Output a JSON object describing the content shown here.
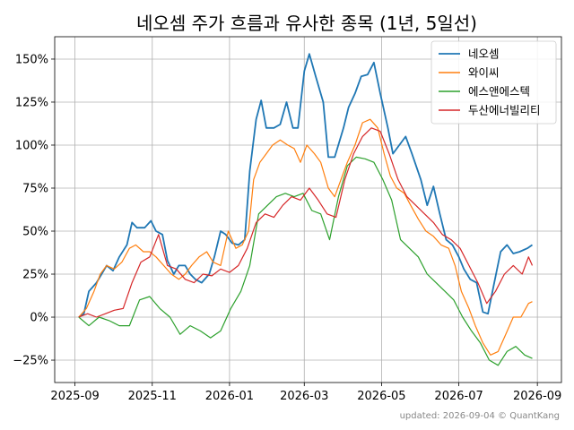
{
  "chart_data": {
    "type": "line",
    "title": "네오셈 주가 흐름과 유사한 종목 (1년, 5일선)",
    "footnote": "updated: 2026-09-04 © QuantKang",
    "x_ticks": [
      "2025-09",
      "2025-11",
      "2026-01",
      "2026-03",
      "2026-05",
      "2026-07",
      "2026-09"
    ],
    "x_tick_dates": [
      "2025-09-01",
      "2025-11-01",
      "2026-01-01",
      "2026-03-01",
      "2026-05-01",
      "2026-07-01",
      "2026-09-01"
    ],
    "y_ticks": [
      -25,
      0,
      25,
      50,
      75,
      100,
      125,
      150
    ],
    "y_tick_labels": [
      "−25%",
      "0%",
      "25%",
      "50%",
      "75%",
      "100%",
      "125%",
      "150%"
    ],
    "x_range": [
      "2025-08-16",
      "2026-09-20"
    ],
    "y_range": [
      -38,
      163
    ],
    "grid": true,
    "legend_position": "top-right",
    "series": [
      {
        "name": "네오셈",
        "color": "#1f77b4",
        "points": [
          [
            "2025-09-04",
            0
          ],
          [
            "2025-09-08",
            2
          ],
          [
            "2025-09-12",
            15
          ],
          [
            "2025-09-18",
            20
          ],
          [
            "2025-09-22",
            25
          ],
          [
            "2025-09-26",
            30
          ],
          [
            "2025-10-01",
            27
          ],
          [
            "2025-10-06",
            35
          ],
          [
            "2025-10-12",
            42
          ],
          [
            "2025-10-16",
            55
          ],
          [
            "2025-10-20",
            52
          ],
          [
            "2025-10-26",
            52
          ],
          [
            "2025-10-31",
            56
          ],
          [
            "2025-11-04",
            50
          ],
          [
            "2025-11-09",
            48
          ],
          [
            "2025-11-13",
            33
          ],
          [
            "2025-11-18",
            25
          ],
          [
            "2025-11-22",
            30
          ],
          [
            "2025-11-27",
            30
          ],
          [
            "2025-12-01",
            25
          ],
          [
            "2025-12-05",
            22
          ],
          [
            "2025-12-10",
            20
          ],
          [
            "2025-12-16",
            25
          ],
          [
            "2025-12-20",
            35
          ],
          [
            "2025-12-25",
            50
          ],
          [
            "2025-12-29",
            48
          ],
          [
            "2026-01-03",
            43
          ],
          [
            "2026-01-08",
            42
          ],
          [
            "2026-01-13",
            45
          ],
          [
            "2026-01-17",
            85
          ],
          [
            "2026-01-22",
            115
          ],
          [
            "2026-01-26",
            126
          ],
          [
            "2026-01-30",
            110
          ],
          [
            "2026-02-05",
            110
          ],
          [
            "2026-02-10",
            112
          ],
          [
            "2026-02-15",
            125
          ],
          [
            "2026-02-20",
            110
          ],
          [
            "2026-02-24",
            110
          ],
          [
            "2026-03-01",
            143
          ],
          [
            "2026-03-05",
            153
          ],
          [
            "2026-03-10",
            140
          ],
          [
            "2026-03-16",
            125
          ],
          [
            "2026-03-20",
            93
          ],
          [
            "2026-03-25",
            93
          ],
          [
            "2026-04-01",
            110
          ],
          [
            "2026-04-05",
            122
          ],
          [
            "2026-04-10",
            130
          ],
          [
            "2026-04-15",
            140
          ],
          [
            "2026-04-20",
            141
          ],
          [
            "2026-04-25",
            148
          ],
          [
            "2026-04-30",
            130
          ],
          [
            "2026-05-06",
            110
          ],
          [
            "2026-05-10",
            95
          ],
          [
            "2026-05-15",
            100
          ],
          [
            "2026-05-20",
            105
          ],
          [
            "2026-05-25",
            95
          ],
          [
            "2026-06-01",
            80
          ],
          [
            "2026-06-06",
            65
          ],
          [
            "2026-06-11",
            76
          ],
          [
            "2026-06-16",
            60
          ],
          [
            "2026-06-21",
            45
          ],
          [
            "2026-06-26",
            42
          ],
          [
            "2026-07-01",
            35
          ],
          [
            "2026-07-05",
            28
          ],
          [
            "2026-07-10",
            22
          ],
          [
            "2026-07-15",
            20
          ],
          [
            "2026-07-20",
            3
          ],
          [
            "2026-07-24",
            2
          ],
          [
            "2026-07-29",
            20
          ],
          [
            "2026-08-03",
            38
          ],
          [
            "2026-08-08",
            42
          ],
          [
            "2026-08-13",
            37
          ],
          [
            "2026-08-18",
            38
          ],
          [
            "2026-08-24",
            40
          ],
          [
            "2026-08-28",
            42
          ]
        ]
      },
      {
        "name": "와이씨",
        "color": "#ff7f0e",
        "points": [
          [
            "2025-09-04",
            0
          ],
          [
            "2025-09-10",
            5
          ],
          [
            "2025-09-16",
            15
          ],
          [
            "2025-09-21",
            25
          ],
          [
            "2025-09-26",
            30
          ],
          [
            "2025-10-02",
            28
          ],
          [
            "2025-10-08",
            32
          ],
          [
            "2025-10-14",
            40
          ],
          [
            "2025-10-19",
            42
          ],
          [
            "2025-10-25",
            38
          ],
          [
            "2025-10-30",
            38
          ],
          [
            "2025-11-04",
            35
          ],
          [
            "2025-11-10",
            30
          ],
          [
            "2025-11-16",
            25
          ],
          [
            "2025-11-22",
            22
          ],
          [
            "2025-11-27",
            25
          ],
          [
            "2025-12-02",
            30
          ],
          [
            "2025-12-08",
            35
          ],
          [
            "2025-12-14",
            38
          ],
          [
            "2025-12-19",
            32
          ],
          [
            "2025-12-25",
            30
          ],
          [
            "2025-12-31",
            50
          ],
          [
            "2026-01-06",
            40
          ],
          [
            "2026-01-11",
            42
          ],
          [
            "2026-01-16",
            50
          ],
          [
            "2026-01-20",
            80
          ],
          [
            "2026-01-25",
            90
          ],
          [
            "2026-01-30",
            95
          ],
          [
            "2026-02-04",
            100
          ],
          [
            "2026-02-10",
            103
          ],
          [
            "2026-02-16",
            100
          ],
          [
            "2026-02-21",
            98
          ],
          [
            "2026-02-26",
            90
          ],
          [
            "2026-03-03",
            100
          ],
          [
            "2026-03-09",
            95
          ],
          [
            "2026-03-14",
            90
          ],
          [
            "2026-03-20",
            75
          ],
          [
            "2026-03-25",
            70
          ],
          [
            "2026-03-30",
            80
          ],
          [
            "2026-04-04",
            90
          ],
          [
            "2026-04-10",
            100
          ],
          [
            "2026-04-16",
            113
          ],
          [
            "2026-04-22",
            115
          ],
          [
            "2026-04-28",
            110
          ],
          [
            "2026-05-03",
            95
          ],
          [
            "2026-05-08",
            82
          ],
          [
            "2026-05-13",
            75
          ],
          [
            "2026-05-19",
            72
          ],
          [
            "2026-05-24",
            65
          ],
          [
            "2026-05-30",
            57
          ],
          [
            "2026-06-05",
            50
          ],
          [
            "2026-06-11",
            47
          ],
          [
            "2026-06-17",
            42
          ],
          [
            "2026-06-23",
            40
          ],
          [
            "2026-06-28",
            30
          ],
          [
            "2026-07-03",
            15
          ],
          [
            "2026-07-09",
            5
          ],
          [
            "2026-07-14",
            -5
          ],
          [
            "2026-07-20",
            -15
          ],
          [
            "2026-07-26",
            -22
          ],
          [
            "2026-08-01",
            -20
          ],
          [
            "2026-08-07",
            -10
          ],
          [
            "2026-08-13",
            0
          ],
          [
            "2026-08-19",
            0
          ],
          [
            "2026-08-25",
            8
          ],
          [
            "2026-08-28",
            9
          ]
        ]
      },
      {
        "name": "에스앤에스텍",
        "color": "#2ca02c",
        "points": [
          [
            "2025-09-04",
            0
          ],
          [
            "2025-09-12",
            -5
          ],
          [
            "2025-09-20",
            0
          ],
          [
            "2025-09-28",
            -2
          ],
          [
            "2025-10-06",
            -5
          ],
          [
            "2025-10-14",
            -5
          ],
          [
            "2025-10-22",
            10
          ],
          [
            "2025-10-30",
            12
          ],
          [
            "2025-11-07",
            5
          ],
          [
            "2025-11-15",
            0
          ],
          [
            "2025-11-23",
            -10
          ],
          [
            "2025-12-01",
            -5
          ],
          [
            "2025-12-09",
            -8
          ],
          [
            "2025-12-17",
            -12
          ],
          [
            "2025-12-25",
            -8
          ],
          [
            "2026-01-02",
            5
          ],
          [
            "2026-01-10",
            15
          ],
          [
            "2026-01-17",
            30
          ],
          [
            "2026-01-24",
            60
          ],
          [
            "2026-01-31",
            65
          ],
          [
            "2026-02-07",
            70
          ],
          [
            "2026-02-14",
            72
          ],
          [
            "2026-02-21",
            70
          ],
          [
            "2026-02-28",
            72
          ],
          [
            "2026-03-07",
            62
          ],
          [
            "2026-03-14",
            60
          ],
          [
            "2026-03-21",
            45
          ],
          [
            "2026-03-28",
            70
          ],
          [
            "2026-04-04",
            88
          ],
          [
            "2026-04-11",
            93
          ],
          [
            "2026-04-18",
            92
          ],
          [
            "2026-04-25",
            90
          ],
          [
            "2026-05-02",
            80
          ],
          [
            "2026-05-09",
            68
          ],
          [
            "2026-05-16",
            45
          ],
          [
            "2026-05-23",
            40
          ],
          [
            "2026-05-30",
            35
          ],
          [
            "2026-06-06",
            25
          ],
          [
            "2026-06-13",
            20
          ],
          [
            "2026-06-20",
            15
          ],
          [
            "2026-06-27",
            10
          ],
          [
            "2026-07-04",
            0
          ],
          [
            "2026-07-11",
            -8
          ],
          [
            "2026-07-18",
            -15
          ],
          [
            "2026-07-25",
            -25
          ],
          [
            "2026-08-01",
            -28
          ],
          [
            "2026-08-08",
            -20
          ],
          [
            "2026-08-15",
            -17
          ],
          [
            "2026-08-22",
            -22
          ],
          [
            "2026-08-28",
            -24
          ]
        ]
      },
      {
        "name": "두산에너빌리티",
        "color": "#d62728",
        "points": [
          [
            "2025-09-04",
            0
          ],
          [
            "2025-09-11",
            2
          ],
          [
            "2025-09-18",
            0
          ],
          [
            "2025-09-25",
            2
          ],
          [
            "2025-10-02",
            4
          ],
          [
            "2025-10-09",
            5
          ],
          [
            "2025-10-16",
            20
          ],
          [
            "2025-10-23",
            32
          ],
          [
            "2025-10-30",
            35
          ],
          [
            "2025-11-06",
            48
          ],
          [
            "2025-11-13",
            30
          ],
          [
            "2025-11-20",
            28
          ],
          [
            "2025-11-27",
            22
          ],
          [
            "2025-12-04",
            20
          ],
          [
            "2025-12-11",
            25
          ],
          [
            "2025-12-18",
            24
          ],
          [
            "2025-12-25",
            28
          ],
          [
            "2026-01-01",
            26
          ],
          [
            "2026-01-08",
            30
          ],
          [
            "2026-01-15",
            40
          ],
          [
            "2026-01-22",
            55
          ],
          [
            "2026-01-29",
            60
          ],
          [
            "2026-02-05",
            58
          ],
          [
            "2026-02-12",
            65
          ],
          [
            "2026-02-19",
            70
          ],
          [
            "2026-02-26",
            68
          ],
          [
            "2026-03-05",
            75
          ],
          [
            "2026-03-12",
            68
          ],
          [
            "2026-03-19",
            60
          ],
          [
            "2026-03-26",
            58
          ],
          [
            "2026-04-02",
            80
          ],
          [
            "2026-04-09",
            95
          ],
          [
            "2026-04-16",
            105
          ],
          [
            "2026-04-23",
            110
          ],
          [
            "2026-04-30",
            108
          ],
          [
            "2026-05-07",
            95
          ],
          [
            "2026-05-14",
            80
          ],
          [
            "2026-05-21",
            70
          ],
          [
            "2026-05-28",
            65
          ],
          [
            "2026-06-04",
            60
          ],
          [
            "2026-06-11",
            55
          ],
          [
            "2026-06-18",
            48
          ],
          [
            "2026-06-25",
            45
          ],
          [
            "2026-07-02",
            40
          ],
          [
            "2026-07-09",
            30
          ],
          [
            "2026-07-16",
            20
          ],
          [
            "2026-07-23",
            8
          ],
          [
            "2026-07-30",
            15
          ],
          [
            "2026-08-06",
            25
          ],
          [
            "2026-08-13",
            30
          ],
          [
            "2026-08-20",
            25
          ],
          [
            "2026-08-25",
            35
          ],
          [
            "2026-08-28",
            30
          ]
        ]
      }
    ]
  }
}
